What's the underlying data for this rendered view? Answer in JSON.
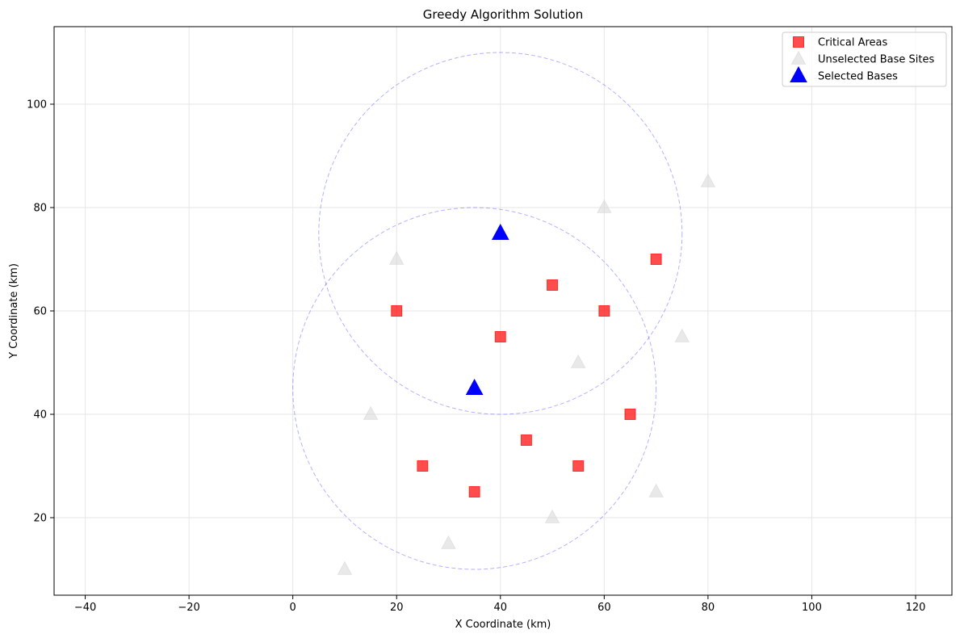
{
  "chart_data": {
    "type": "scatter",
    "title": "Greedy Algorithm Solution",
    "xlabel": "X Coordinate (km)",
    "ylabel": "Y Coordinate (km)",
    "xlim": [
      -46,
      127
    ],
    "ylim": [
      5,
      115
    ],
    "xticks": [
      -40,
      -20,
      0,
      20,
      40,
      60,
      80,
      100,
      120
    ],
    "yticks": [
      20,
      40,
      60,
      80,
      100
    ],
    "grid": true,
    "legend_position": "top-right",
    "series": [
      {
        "name": "Critical Areas",
        "marker": "square",
        "color": "#ff0000",
        "points": [
          [
            20,
            60
          ],
          [
            40,
            55
          ],
          [
            50,
            65
          ],
          [
            60,
            60
          ],
          [
            70,
            70
          ],
          [
            65,
            40
          ],
          [
            45,
            35
          ],
          [
            55,
            30
          ],
          [
            25,
            30
          ],
          [
            35,
            25
          ]
        ]
      },
      {
        "name": "Unselected Base Sites",
        "marker": "triangle",
        "color": "#d3d3d3",
        "points": [
          [
            20,
            70
          ],
          [
            60,
            80
          ],
          [
            80,
            85
          ],
          [
            75,
            55
          ],
          [
            55,
            50
          ],
          [
            15,
            40
          ],
          [
            70,
            25
          ],
          [
            50,
            20
          ],
          [
            30,
            15
          ],
          [
            10,
            10
          ]
        ]
      },
      {
        "name": "Selected Bases",
        "marker": "triangle",
        "color": "#0000ff",
        "points": [
          [
            40,
            75
          ],
          [
            35,
            45
          ]
        ]
      }
    ],
    "coverage_circles": {
      "color": "#0000ff",
      "radius": 35,
      "centers": [
        [
          40,
          75
        ],
        [
          35,
          45
        ]
      ]
    }
  }
}
